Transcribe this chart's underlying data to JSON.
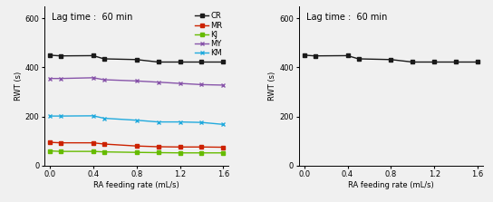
{
  "left": {
    "title": "Lag time :  60 min",
    "xlabel": "RA feeding rate (mL/s)",
    "ylabel": "RWT (s)",
    "xlim": [
      -0.05,
      1.65
    ],
    "ylim": [
      0,
      650
    ],
    "yticks": [
      0,
      200,
      400,
      600
    ],
    "xticks": [
      0,
      0.4,
      0.8,
      1.2,
      1.6
    ],
    "series": {
      "CR": {
        "color": "#1a1a1a",
        "marker": "s",
        "x": [
          0,
          0.1,
          0.4,
          0.5,
          0.8,
          1.0,
          1.2,
          1.4,
          1.6
        ],
        "y": [
          450,
          447,
          448,
          435,
          432,
          422,
          422,
          422,
          422
        ]
      },
      "MR": {
        "color": "#cc2200",
        "marker": "s",
        "x": [
          0,
          0.1,
          0.4,
          0.5,
          0.8,
          1.0,
          1.2,
          1.4,
          1.6
        ],
        "y": [
          95,
          93,
          93,
          88,
          80,
          77,
          76,
          76,
          75
        ]
      },
      "KJ": {
        "color": "#66bb00",
        "marker": "s",
        "x": [
          0,
          0.1,
          0.4,
          0.5,
          0.8,
          1.0,
          1.2,
          1.4,
          1.6
        ],
        "y": [
          60,
          58,
          58,
          56,
          54,
          53,
          52,
          52,
          52
        ]
      },
      "MY": {
        "color": "#8855aa",
        "marker": "x",
        "x": [
          0,
          0.1,
          0.4,
          0.5,
          0.8,
          1.0,
          1.2,
          1.4,
          1.6
        ],
        "y": [
          355,
          355,
          358,
          350,
          345,
          340,
          335,
          330,
          328
        ]
      },
      "KM": {
        "color": "#22aadd",
        "marker": "x",
        "x": [
          0,
          0.1,
          0.4,
          0.5,
          0.8,
          1.0,
          1.2,
          1.4,
          1.6
        ],
        "y": [
          202,
          202,
          203,
          193,
          185,
          178,
          178,
          176,
          168
        ]
      }
    }
  },
  "right": {
    "title": "Lag time :  60 min",
    "xlabel": "RA feeding rate (mL/s)",
    "ylabel": "RWT (s)",
    "xlim": [
      -0.05,
      1.65
    ],
    "ylim": [
      0,
      650
    ],
    "yticks": [
      0,
      200,
      400,
      600
    ],
    "xticks": [
      0,
      0.4,
      0.8,
      1.2,
      1.6
    ],
    "series": {
      "CR": {
        "color": "#1a1a1a",
        "marker": "s",
        "x": [
          0,
          0.1,
          0.4,
          0.5,
          0.8,
          1.0,
          1.2,
          1.4,
          1.6
        ],
        "y": [
          450,
          447,
          448,
          435,
          432,
          422,
          422,
          422,
          422
        ]
      }
    }
  },
  "bg_color": "#f0f0f0",
  "title_fontsize": 7,
  "label_fontsize": 6,
  "tick_fontsize": 6,
  "legend_fontsize": 6,
  "linewidth": 1.0,
  "markersize": 3.0
}
